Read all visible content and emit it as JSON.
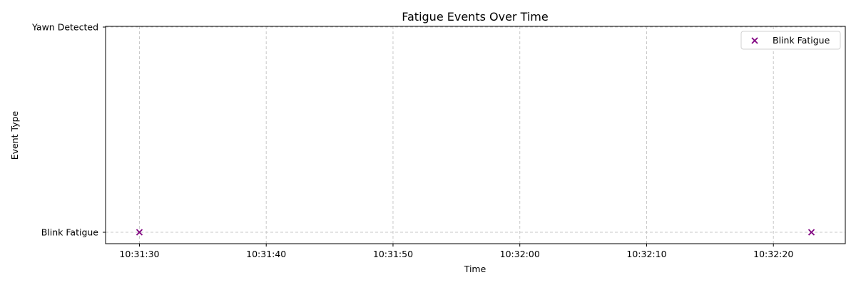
{
  "chart_data": {
    "type": "scatter",
    "title": "Fatigue Events Over Time",
    "xlabel": "Time",
    "ylabel": "Event Type",
    "x_axis": {
      "kind": "time",
      "range": [
        "10:31:27.33",
        "10:32:25.67"
      ],
      "ticks": [
        "10:31:30",
        "10:31:40",
        "10:31:50",
        "10:32:00",
        "10:32:10",
        "10:32:20"
      ]
    },
    "y_axis": {
      "kind": "category",
      "categories": [
        "Blink Fatigue",
        "Yawn Detected"
      ]
    },
    "grid": true,
    "legend": {
      "position": "top-right",
      "entries": [
        {
          "name": "Blink Fatigue",
          "color": "#800080",
          "marker": "x"
        }
      ]
    },
    "series": [
      {
        "name": "Blink Fatigue",
        "color": "#800080",
        "marker": "x",
        "points": [
          {
            "x": "10:31:30",
            "y": "Blink Fatigue"
          },
          {
            "x": "10:32:23",
            "y": "Blink Fatigue"
          }
        ]
      }
    ]
  }
}
